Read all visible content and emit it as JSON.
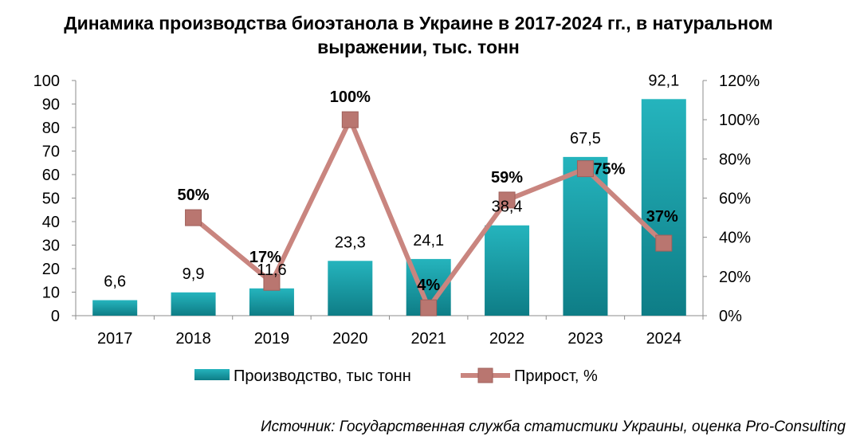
{
  "title_line1": "Динамика производства биоэтанола в Украине в 2017-2024 гг., в натуральном",
  "title_line2": "выражении, тыс. тонн",
  "source": "Источник: Государственная служба статистики Украины, оценка Pro-Consulting",
  "chart_data": {
    "type": "bar",
    "categories": [
      "2017",
      "2018",
      "2019",
      "2020",
      "2021",
      "2022",
      "2023",
      "2024"
    ],
    "series": [
      {
        "name": "Производство, тыс тонн",
        "type": "bar",
        "axis": "left",
        "values": [
          6.6,
          9.9,
          11.6,
          23.3,
          24.1,
          38.4,
          67.5,
          92.1
        ],
        "labels": [
          "6,6",
          "9,9",
          "11,6",
          "23,3",
          "24,1",
          "38,4",
          "67,5",
          "92,1"
        ],
        "color": "#1a9aa3"
      },
      {
        "name": "Прирост, %",
        "type": "line",
        "axis": "right",
        "values": [
          null,
          50,
          17,
          100,
          4,
          59,
          75,
          37
        ],
        "labels": [
          "",
          "50%",
          "17%",
          "100%",
          "4%",
          "59%",
          "75%",
          "37%"
        ],
        "color": "#c9857f"
      }
    ],
    "y_left": {
      "min": 0,
      "max": 100,
      "ticks": [
        "0",
        "10",
        "20",
        "30",
        "40",
        "50",
        "60",
        "70",
        "80",
        "90",
        "100"
      ]
    },
    "y_right": {
      "min": 0,
      "max": 120,
      "ticks": [
        "0%",
        "20%",
        "40%",
        "60%",
        "80%",
        "100%",
        "120%"
      ]
    },
    "grid": false,
    "legend_position": "bottom"
  }
}
